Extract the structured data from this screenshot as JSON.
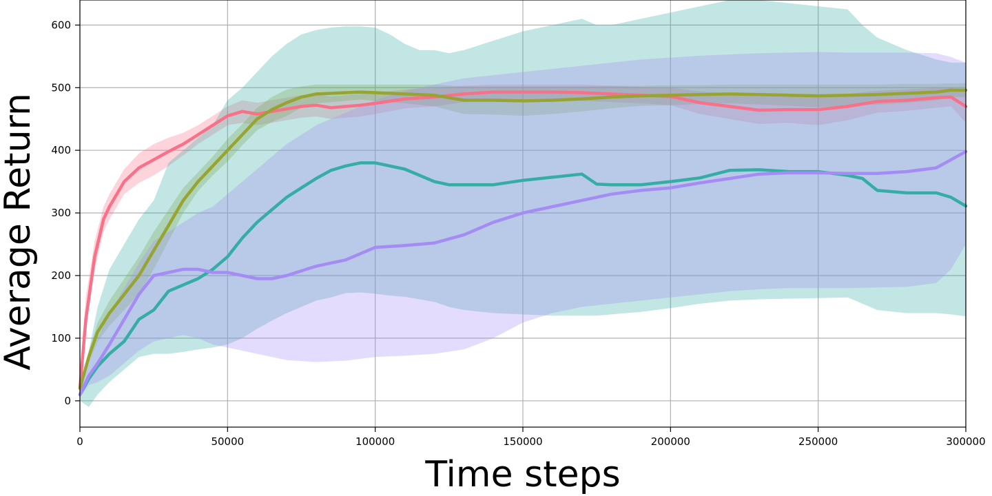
{
  "chart_data": {
    "type": "line",
    "title": "",
    "xlabel": "Time steps",
    "ylabel": "Average Return",
    "xlim": [
      0,
      300000
    ],
    "ylim": [
      -42,
      640
    ],
    "xticks": [
      0,
      50000,
      100000,
      150000,
      200000,
      250000,
      300000
    ],
    "yticks": [
      0,
      100,
      200,
      300,
      400,
      500,
      600
    ],
    "grid": true,
    "legend": "none",
    "series": [
      {
        "color": "#f77189",
        "x": [
          0,
          2000,
          5000,
          8000,
          10000,
          15000,
          20000,
          25000,
          30000,
          35000,
          40000,
          45000,
          50000,
          55000,
          60000,
          65000,
          70000,
          75000,
          80000,
          85000,
          90000,
          95000,
          100000,
          110000,
          120000,
          130000,
          140000,
          150000,
          160000,
          170000,
          180000,
          190000,
          200000,
          210000,
          220000,
          230000,
          240000,
          250000,
          260000,
          270000,
          280000,
          290000,
          295000,
          300000
        ],
        "y": [
          20,
          130,
          230,
          290,
          310,
          350,
          372,
          385,
          398,
          410,
          425,
          440,
          455,
          462,
          458,
          462,
          466,
          470,
          472,
          468,
          470,
          472,
          475,
          482,
          485,
          490,
          493,
          493,
          493,
          492,
          490,
          488,
          486,
          476,
          470,
          464,
          465,
          465,
          470,
          478,
          480,
          484,
          485,
          470
        ],
        "upper": [
          35,
          165,
          255,
          310,
          330,
          370,
          395,
          410,
          420,
          428,
          440,
          455,
          470,
          480,
          476,
          480,
          484,
          488,
          490,
          486,
          488,
          490,
          492,
          497,
          500,
          503,
          505,
          505,
          505,
          505,
          503,
          501,
          500,
          494,
          490,
          486,
          486,
          486,
          490,
          495,
          497,
          500,
          500,
          496
        ],
        "lower": [
          10,
          110,
          210,
          270,
          290,
          330,
          348,
          360,
          375,
          392,
          410,
          425,
          440,
          444,
          440,
          444,
          448,
          452,
          454,
          450,
          452,
          454,
          458,
          467,
          470,
          477,
          481,
          481,
          481,
          479,
          477,
          475,
          472,
          458,
          450,
          442,
          444,
          440,
          448,
          460,
          463,
          468,
          470,
          444
        ]
      },
      {
        "color": "#97a431",
        "x": [
          0,
          3000,
          6000,
          10000,
          15000,
          20000,
          25000,
          30000,
          35000,
          40000,
          45000,
          50000,
          55000,
          60000,
          65000,
          70000,
          75000,
          80000,
          85000,
          90000,
          95000,
          100000,
          110000,
          120000,
          130000,
          140000,
          150000,
          160000,
          170000,
          180000,
          190000,
          200000,
          210000,
          220000,
          230000,
          240000,
          250000,
          260000,
          270000,
          280000,
          290000,
          295000,
          300000
        ],
        "y": [
          20,
          70,
          110,
          140,
          170,
          200,
          240,
          280,
          320,
          350,
          375,
          400,
          425,
          450,
          465,
          476,
          485,
          490,
          491,
          492,
          493,
          492,
          490,
          488,
          480,
          480,
          479,
          480,
          482,
          485,
          487,
          488,
          489,
          490,
          489,
          488,
          487,
          488,
          489,
          491,
          493,
          496,
          496
        ],
        "upper": [
          28,
          80,
          125,
          160,
          195,
          230,
          270,
          305,
          340,
          365,
          390,
          418,
          442,
          468,
          485,
          497,
          502,
          505,
          505,
          505,
          505,
          505,
          505,
          505,
          502,
          502,
          502,
          502,
          502,
          503,
          503,
          504,
          504,
          505,
          505,
          505,
          505,
          505,
          505,
          506,
          506,
          507,
          507
        ],
        "lower": [
          15,
          60,
          95,
          120,
          145,
          170,
          210,
          255,
          300,
          335,
          360,
          382,
          408,
          432,
          445,
          455,
          468,
          475,
          477,
          479,
          481,
          479,
          475,
          470,
          458,
          457,
          455,
          458,
          462,
          467,
          471,
          472,
          474,
          475,
          473,
          471,
          469,
          471,
          473,
          476,
          480,
          485,
          485
        ]
      },
      {
        "color": "#36ada4",
        "x": [
          0,
          3000,
          6000,
          10000,
          15000,
          20000,
          25000,
          30000,
          35000,
          40000,
          45000,
          50000,
          55000,
          60000,
          65000,
          70000,
          75000,
          80000,
          85000,
          90000,
          95000,
          100000,
          105000,
          110000,
          115000,
          120000,
          125000,
          130000,
          140000,
          150000,
          160000,
          170000,
          175000,
          180000,
          190000,
          200000,
          210000,
          220000,
          230000,
          240000,
          250000,
          260000,
          265000,
          270000,
          280000,
          290000,
          295000,
          300000
        ],
        "y": [
          10,
          35,
          55,
          75,
          95,
          130,
          145,
          175,
          185,
          195,
          210,
          230,
          260,
          285,
          305,
          325,
          340,
          355,
          368,
          375,
          380,
          380,
          375,
          370,
          360,
          350,
          345,
          345,
          345,
          352,
          357,
          362,
          346,
          345,
          345,
          350,
          356,
          368,
          369,
          366,
          366,
          360,
          355,
          336,
          332,
          332,
          325,
          311
        ],
        "upper": [
          20,
          80,
          150,
          210,
          250,
          290,
          320,
          380,
          400,
          420,
          440,
          480,
          500,
          525,
          550,
          570,
          585,
          592,
          596,
          598,
          598,
          596,
          585,
          570,
          560,
          560,
          555,
          560,
          575,
          590,
          600,
          610,
          600,
          600,
          610,
          620,
          630,
          640,
          640,
          635,
          630,
          625,
          600,
          580,
          560,
          545,
          540,
          540
        ],
        "lower": [
          0,
          -10,
          10,
          30,
          50,
          70,
          75,
          75,
          78,
          82,
          85,
          90,
          100,
          115,
          128,
          140,
          150,
          160,
          165,
          172,
          173,
          171,
          168,
          166,
          162,
          158,
          150,
          145,
          140,
          138,
          136,
          136,
          136,
          138,
          142,
          148,
          155,
          160,
          162,
          163,
          164,
          165,
          155,
          145,
          140,
          140,
          138,
          135
        ]
      },
      {
        "color": "#a48cf4",
        "x": [
          0,
          3000,
          6000,
          10000,
          15000,
          20000,
          25000,
          30000,
          35000,
          40000,
          45000,
          50000,
          55000,
          60000,
          65000,
          70000,
          80000,
          90000,
          100000,
          110000,
          120000,
          130000,
          140000,
          150000,
          160000,
          170000,
          180000,
          190000,
          200000,
          210000,
          220000,
          230000,
          240000,
          250000,
          260000,
          270000,
          280000,
          290000,
          295000,
          300000
        ],
        "y": [
          10,
          40,
          60,
          90,
          130,
          170,
          200,
          205,
          210,
          210,
          205,
          205,
          200,
          195,
          195,
          200,
          215,
          225,
          245,
          248,
          252,
          265,
          285,
          300,
          310,
          320,
          330,
          336,
          340,
          348,
          355,
          362,
          364,
          364,
          363,
          363,
          366,
          372,
          385,
          398
        ],
        "upper": [
          20,
          60,
          100,
          140,
          180,
          220,
          255,
          270,
          285,
          300,
          310,
          330,
          350,
          370,
          390,
          410,
          440,
          460,
          480,
          495,
          505,
          515,
          520,
          525,
          530,
          535,
          540,
          545,
          548,
          551,
          553,
          555,
          556,
          557,
          556,
          556,
          556,
          555,
          549,
          540
        ],
        "lower": [
          5,
          25,
          30,
          40,
          60,
          80,
          95,
          100,
          105,
          100,
          90,
          85,
          80,
          75,
          70,
          65,
          62,
          64,
          70,
          72,
          75,
          82,
          100,
          125,
          140,
          150,
          155,
          160,
          165,
          170,
          175,
          178,
          180,
          180,
          180,
          181,
          182,
          188,
          210,
          250
        ]
      }
    ]
  }
}
